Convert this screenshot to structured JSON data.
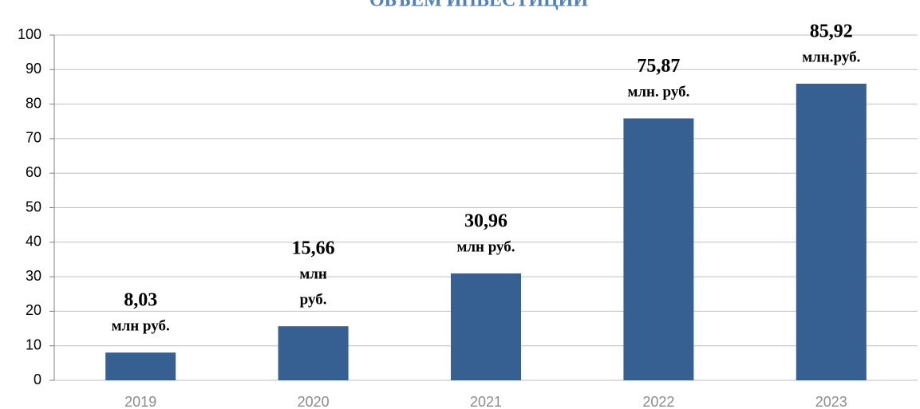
{
  "chart_data": {
    "type": "bar",
    "title": "ОБЪЕМ ИНВЕСТИЦИЙ",
    "categories": [
      "2019",
      "2020",
      "2021",
      "2022",
      "2023"
    ],
    "values": [
      8.03,
      15.66,
      30.96,
      75.87,
      85.92
    ],
    "value_labels": [
      "8,03",
      "15,66",
      "30,96",
      "75,87",
      "85,92"
    ],
    "unit_labels": [
      [
        "млн руб."
      ],
      [
        "млн",
        "руб."
      ],
      [
        "млн руб."
      ],
      [
        "млн. руб."
      ],
      [
        "млн.руб."
      ]
    ],
    "color": "#376092",
    "ylim": [
      0,
      100
    ],
    "yticks": [
      0,
      10,
      20,
      30,
      40,
      50,
      60,
      70,
      80,
      90,
      100
    ],
    "grid": true
  }
}
